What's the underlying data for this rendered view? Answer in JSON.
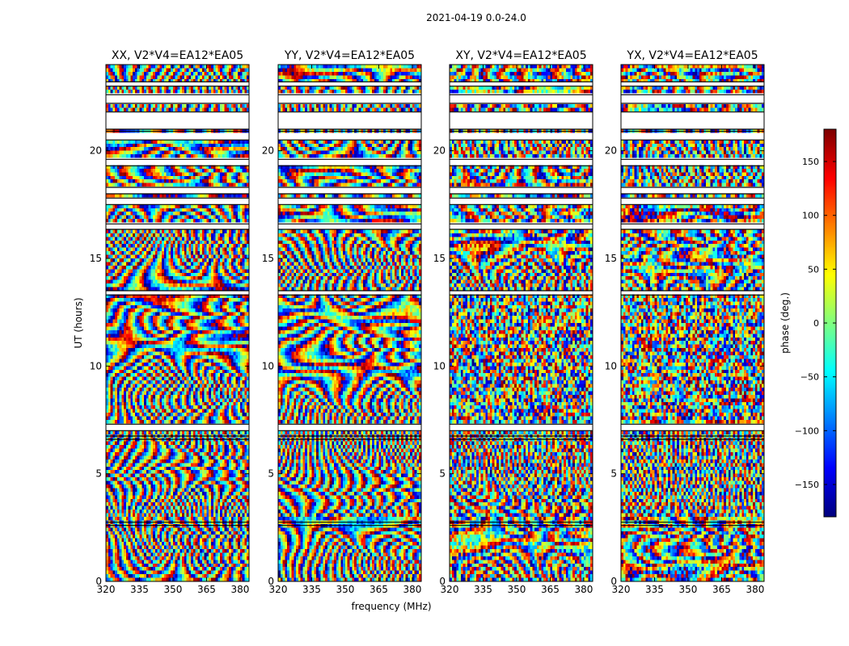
{
  "chart_data": {
    "type": "heatmap",
    "suptitle": "2021-04-19 0.0-24.0",
    "xlabel": "frequency (MHz)",
    "ylabel": "UT (hours)",
    "xlim": [
      320,
      384
    ],
    "ylim": [
      0,
      24
    ],
    "x_ticks": [
      320,
      335,
      350,
      365,
      380
    ],
    "y_ticks": [
      0,
      5,
      10,
      15,
      20
    ],
    "panels": [
      {
        "title": "XX, V2*V4=EA12*EA05",
        "pol": "XX"
      },
      {
        "title": "YY, V2*V4=EA12*EA05",
        "pol": "YY"
      },
      {
        "title": "XY, V2*V4=EA12*EA05",
        "pol": "XY"
      },
      {
        "title": "YX, V2*V4=EA12*EA05",
        "pol": "YX"
      }
    ],
    "blank_time_ranges": [
      [
        2.6,
        2.75
      ],
      [
        6.6,
        6.75
      ],
      [
        7.0,
        7.3
      ],
      [
        13.3,
        13.5
      ],
      [
        16.35,
        16.6
      ],
      [
        17.5,
        17.8
      ],
      [
        18.0,
        18.3
      ],
      [
        19.3,
        19.6
      ],
      [
        20.5,
        20.9
      ],
      [
        21.0,
        21.8
      ],
      [
        22.2,
        22.6
      ],
      [
        23.0,
        23.2
      ]
    ],
    "colorbar": {
      "label": "phase (deg.)",
      "vmin": -180,
      "vmax": 180,
      "ticks": [
        150,
        100,
        50,
        0,
        -50,
        -100,
        -150
      ],
      "tick_labels": [
        "150",
        "100",
        "50",
        "0",
        "−50",
        "−100",
        "−150"
      ],
      "colormap": "jet"
    }
  }
}
